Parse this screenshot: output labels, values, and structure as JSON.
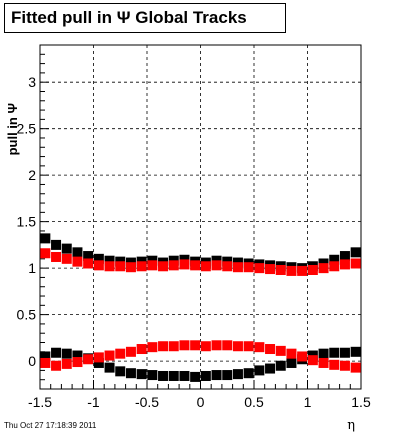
{
  "title": "Fitted pull in  Ψ   Global Tracks",
  "timestamp": "Thu Oct 27 17:18:39 2011",
  "chart_data": {
    "type": "scatter",
    "title": "Fitted pull in  Ψ   Global Tracks",
    "xlabel": "η",
    "ylabel": "pull in  Ψ",
    "xlim": [
      -1.5,
      1.5
    ],
    "ylim": [
      -0.3,
      3.4
    ],
    "grid": true,
    "x_ticks": [
      "-1.5",
      "-1",
      "-0.5",
      "0",
      "0.5",
      "1",
      "1.5"
    ],
    "y_ticks": [
      "0",
      "0.5",
      "1",
      "1.5",
      "2",
      "2.5",
      "3"
    ],
    "x": [
      -1.45,
      -1.35,
      -1.25,
      -1.15,
      -1.05,
      -0.95,
      -0.85,
      -0.75,
      -0.65,
      -0.55,
      -0.45,
      -0.35,
      -0.25,
      -0.15,
      -0.05,
      0.05,
      0.15,
      0.25,
      0.35,
      0.45,
      0.55,
      0.65,
      0.75,
      0.85,
      0.95,
      1.05,
      1.15,
      1.25,
      1.35,
      1.45
    ],
    "series": [
      {
        "color": "#000000",
        "values": [
          1.32,
          1.25,
          1.21,
          1.17,
          1.13,
          1.1,
          1.08,
          1.07,
          1.06,
          1.07,
          1.08,
          1.06,
          1.08,
          1.09,
          1.07,
          1.06,
          1.08,
          1.07,
          1.06,
          1.05,
          1.04,
          1.03,
          1.02,
          1.01,
          1.0,
          1.02,
          1.05,
          1.09,
          1.13,
          1.17
        ]
      },
      {
        "color": "#ff0000",
        "values": [
          1.16,
          1.12,
          1.1,
          1.07,
          1.05,
          1.03,
          1.02,
          1.02,
          1.01,
          1.02,
          1.03,
          1.02,
          1.03,
          1.04,
          1.03,
          1.02,
          1.03,
          1.02,
          1.01,
          1.01,
          1.0,
          0.99,
          0.98,
          0.97,
          0.97,
          0.98,
          1.0,
          1.02,
          1.04,
          1.05
        ]
      },
      {
        "color": "#000000",
        "values": [
          0.05,
          0.09,
          0.08,
          0.06,
          0.03,
          -0.02,
          -0.07,
          -0.11,
          -0.13,
          -0.14,
          -0.15,
          -0.16,
          -0.16,
          -0.16,
          -0.17,
          -0.16,
          -0.15,
          -0.15,
          -0.14,
          -0.13,
          -0.1,
          -0.08,
          -0.05,
          -0.02,
          0.02,
          0.06,
          0.08,
          0.09,
          0.09,
          0.1
        ]
      },
      {
        "color": "#ff0000",
        "values": [
          -0.02,
          -0.05,
          -0.03,
          -0.01,
          0.02,
          0.04,
          0.06,
          0.08,
          0.1,
          0.13,
          0.15,
          0.16,
          0.16,
          0.17,
          0.17,
          0.16,
          0.17,
          0.17,
          0.16,
          0.16,
          0.15,
          0.13,
          0.11,
          0.08,
          0.05,
          0.01,
          -0.02,
          -0.04,
          -0.05,
          -0.07
        ]
      }
    ]
  }
}
